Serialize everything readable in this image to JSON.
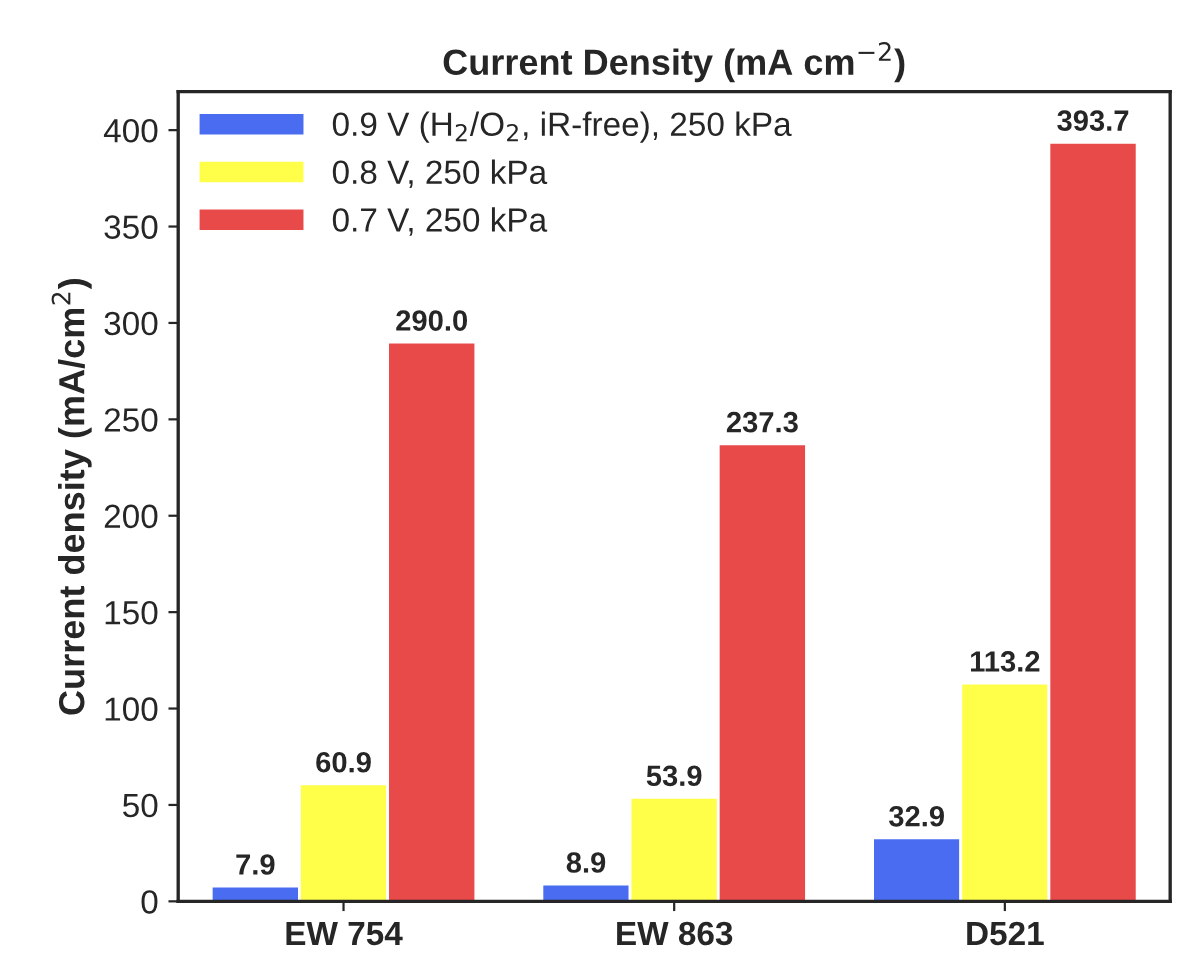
{
  "chart_data": {
    "type": "bar",
    "title": "Current Density (mA cm$^{−2}$)",
    "ylabel": "Current density (mA/cm$^{2}$)",
    "categories": [
      "EW 754",
      "EW 863",
      "D521"
    ],
    "series": [
      {
        "name": "0.9 V (H$_{2}$/O$_{2}$, iR-free), 250 kPa",
        "color": "#4a6cf0",
        "values": [
          7.9,
          8.9,
          32.9
        ],
        "value_labels": [
          "7.9",
          "8.9",
          "32.9"
        ]
      },
      {
        "name": "0.8 V, 250 kPa",
        "color": "#ffff4a",
        "values": [
          60.9,
          53.9,
          113.2
        ],
        "value_labels": [
          "60.9",
          "53.9",
          "113.2"
        ]
      },
      {
        "name": "0.7 V, 250 kPa",
        "color": "#e84a4a",
        "values": [
          290.0,
          237.3,
          393.7
        ],
        "value_labels": [
          "290.0",
          "237.3",
          "393.7"
        ]
      }
    ],
    "ylim": [
      0,
      420
    ],
    "yticks": [
      0,
      50,
      100,
      150,
      200,
      250,
      300,
      350,
      400
    ],
    "legend": "top left"
  }
}
